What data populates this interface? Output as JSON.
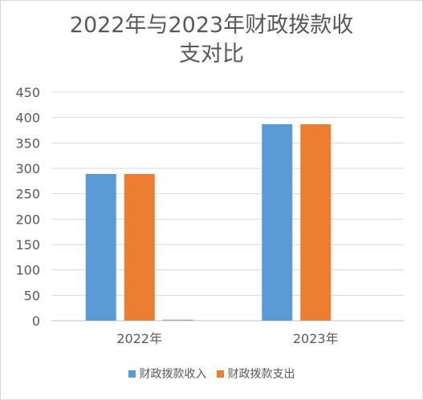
{
  "chart_data": {
    "type": "bar",
    "title_line1": "2022年与2023年财政拨款收",
    "title_line2": "支对比",
    "categories": [
      "2022年",
      "2023年"
    ],
    "series": [
      {
        "name": "财政拨款收入",
        "color": "#5b9bd5",
        "values": [
          289,
          387
        ]
      },
      {
        "name": "财政拨款支出",
        "color": "#ed7d31",
        "values": [
          289,
          387
        ]
      },
      {
        "name": "",
        "color": "#a5a5a5",
        "values": [
          2,
          0
        ]
      }
    ],
    "ylim": [
      0,
      450
    ],
    "yticks": [
      "0",
      "50",
      "100",
      "150",
      "200",
      "250",
      "300",
      "350",
      "400",
      "450"
    ],
    "grid": true,
    "legend_position": "bottom"
  }
}
